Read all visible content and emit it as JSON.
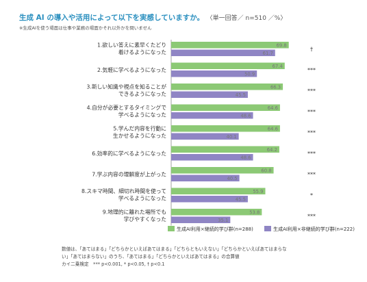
{
  "header": {
    "title": "生成 AI の導入や活用によって以下を実感していますか。",
    "unit": "〈単一回答／ n=510 ／%〉",
    "subnote": "※生成AIを使う場面は仕事や業務の場面かそれ以外かを問いません"
  },
  "colors": {
    "series1": "#8cc975",
    "series2": "#8f85c4"
  },
  "chart_data": {
    "type": "bar",
    "orientation": "horizontal",
    "categories": [
      [
        "1.欲しい答えに素早くたどり",
        "着けるようになった"
      ],
      [
        "2.気軽に学べるようになった"
      ],
      [
        "3.新しい知識や視点を知ることが",
        "できるようになった"
      ],
      [
        "4.自分が必要とするタイミングで",
        "学べるようになった"
      ],
      [
        "5.学んだ内容を行動に",
        "生かせるようになった"
      ],
      [
        "6.効率的に学べるようになった"
      ],
      [
        "7.学ぶ内容の理解度が上がった"
      ],
      [
        "8.スキマ時間、細切れ時間を使って",
        "学べるようになった"
      ],
      [
        "9.地理的に離れた場所でも",
        "学びやすくなった"
      ]
    ],
    "series": [
      {
        "name": "生成AI利用×継続的学び群(n=288)",
        "values": [
          69.8,
          67.4,
          66.3,
          64.6,
          64.6,
          64.2,
          60.8,
          55.9,
          53.8
        ]
      },
      {
        "name": "生成AI利用×非継続的学び群(n=222)",
        "values": [
          61.7,
          50.9,
          45.5,
          48.6,
          40.1,
          48.6,
          40.5,
          45.5,
          35.1
        ]
      }
    ],
    "significance": [
      "†",
      "***",
      "***",
      "***",
      "***",
      "***",
      "***",
      "*",
      "***"
    ],
    "xlim": [
      0,
      100
    ],
    "grid": false,
    "legend": "bottom"
  },
  "footnote": {
    "lines": [
      "数値は、「あてはまる」「どちらかといえばあてはまる」「どちらともいえない」「どちらかといえばあてはまらな",
      "い」「あてはまらない」のうち、「あてはまる」「どちらかといえばあてはまる」の合算値",
      "カイ二乗検定　*** p<0.001, * p<0.05, † p<0.1"
    ]
  }
}
